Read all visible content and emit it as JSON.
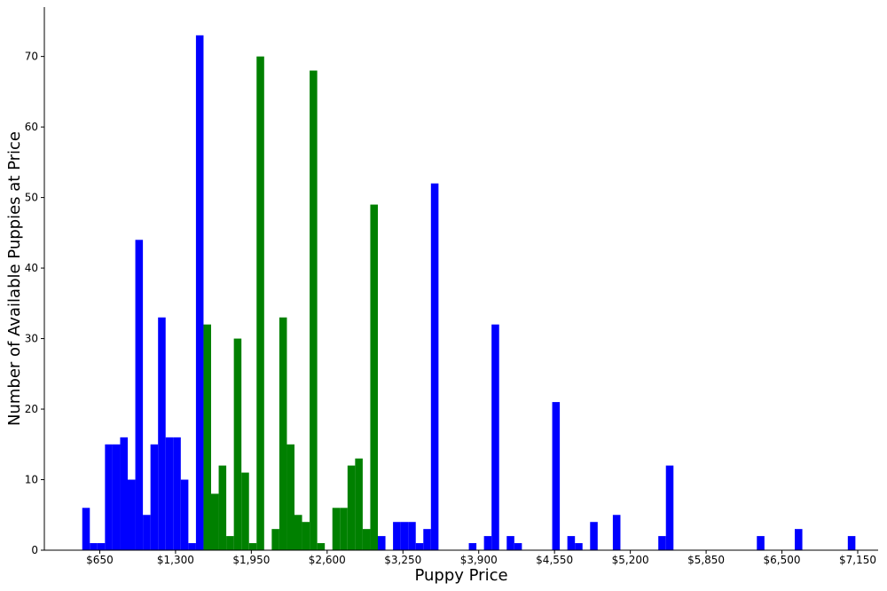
{
  "chart_data": {
    "type": "bar",
    "title": "",
    "xlabel": "Puppy Price",
    "ylabel": "Number of Available Puppies at Price",
    "xlim": [
      175,
      7325
    ],
    "ylim": [
      0,
      77
    ],
    "x_ticks": [
      650,
      1300,
      1950,
      2600,
      3250,
      3900,
      4550,
      5200,
      5850,
      6500,
      7150
    ],
    "x_tick_labels": [
      "$650",
      "$1,300",
      "$1,950",
      "$2,600",
      "$3,250",
      "$3,900",
      "$4,550",
      "$5,200",
      "$5,850",
      "$6,500",
      "$7,150"
    ],
    "y_ticks": [
      0,
      10,
      20,
      30,
      40,
      50,
      60,
      70
    ],
    "y_tick_labels": [
      "0",
      "10",
      "20",
      "30",
      "40",
      "50",
      "60",
      "70"
    ],
    "bin_width": 65,
    "grid": false,
    "colors": {
      "blue": "#0000ff",
      "green": "#008000"
    },
    "bars": [
      {
        "x": 500,
        "value": 6,
        "color": "blue"
      },
      {
        "x": 565,
        "value": 1,
        "color": "blue"
      },
      {
        "x": 630,
        "value": 1,
        "color": "blue"
      },
      {
        "x": 695,
        "value": 15,
        "color": "blue"
      },
      {
        "x": 760,
        "value": 15,
        "color": "blue"
      },
      {
        "x": 825,
        "value": 16,
        "color": "blue"
      },
      {
        "x": 890,
        "value": 10,
        "color": "blue"
      },
      {
        "x": 955,
        "value": 44,
        "color": "blue"
      },
      {
        "x": 1020,
        "value": 5,
        "color": "blue"
      },
      {
        "x": 1085,
        "value": 15,
        "color": "blue"
      },
      {
        "x": 1150,
        "value": 33,
        "color": "blue"
      },
      {
        "x": 1215,
        "value": 16,
        "color": "blue"
      },
      {
        "x": 1280,
        "value": 16,
        "color": "blue"
      },
      {
        "x": 1345,
        "value": 10,
        "color": "blue"
      },
      {
        "x": 1410,
        "value": 1,
        "color": "blue"
      },
      {
        "x": 1475,
        "value": 73,
        "color": "blue"
      },
      {
        "x": 1540,
        "value": 32,
        "color": "green"
      },
      {
        "x": 1605,
        "value": 8,
        "color": "green"
      },
      {
        "x": 1670,
        "value": 12,
        "color": "green"
      },
      {
        "x": 1735,
        "value": 2,
        "color": "green"
      },
      {
        "x": 1800,
        "value": 30,
        "color": "green"
      },
      {
        "x": 1865,
        "value": 11,
        "color": "green"
      },
      {
        "x": 1930,
        "value": 1,
        "color": "green"
      },
      {
        "x": 1995,
        "value": 70,
        "color": "green"
      },
      {
        "x": 2125,
        "value": 3,
        "color": "green"
      },
      {
        "x": 2190,
        "value": 33,
        "color": "green"
      },
      {
        "x": 2255,
        "value": 15,
        "color": "green"
      },
      {
        "x": 2320,
        "value": 5,
        "color": "green"
      },
      {
        "x": 2385,
        "value": 4,
        "color": "green"
      },
      {
        "x": 2450,
        "value": 68,
        "color": "green"
      },
      {
        "x": 2515,
        "value": 1,
        "color": "green"
      },
      {
        "x": 2645,
        "value": 6,
        "color": "green"
      },
      {
        "x": 2710,
        "value": 6,
        "color": "green"
      },
      {
        "x": 2775,
        "value": 12,
        "color": "green"
      },
      {
        "x": 2840,
        "value": 13,
        "color": "green"
      },
      {
        "x": 2905,
        "value": 3,
        "color": "green"
      },
      {
        "x": 2970,
        "value": 49,
        "color": "green"
      },
      {
        "x": 3035,
        "value": 2,
        "color": "blue"
      },
      {
        "x": 3165,
        "value": 4,
        "color": "blue"
      },
      {
        "x": 3230,
        "value": 4,
        "color": "blue"
      },
      {
        "x": 3295,
        "value": 4,
        "color": "blue"
      },
      {
        "x": 3360,
        "value": 1,
        "color": "blue"
      },
      {
        "x": 3425,
        "value": 3,
        "color": "blue"
      },
      {
        "x": 3490,
        "value": 52,
        "color": "blue"
      },
      {
        "x": 3815,
        "value": 1,
        "color": "blue"
      },
      {
        "x": 3945,
        "value": 2,
        "color": "blue"
      },
      {
        "x": 4010,
        "value": 32,
        "color": "blue"
      },
      {
        "x": 4140,
        "value": 2,
        "color": "blue"
      },
      {
        "x": 4205,
        "value": 1,
        "color": "blue"
      },
      {
        "x": 4530,
        "value": 21,
        "color": "blue"
      },
      {
        "x": 4660,
        "value": 2,
        "color": "blue"
      },
      {
        "x": 4725,
        "value": 1,
        "color": "blue"
      },
      {
        "x": 4855,
        "value": 4,
        "color": "blue"
      },
      {
        "x": 5050,
        "value": 5,
        "color": "blue"
      },
      {
        "x": 5440,
        "value": 2,
        "color": "blue"
      },
      {
        "x": 5505,
        "value": 12,
        "color": "blue"
      },
      {
        "x": 6285,
        "value": 2,
        "color": "blue"
      },
      {
        "x": 6610,
        "value": 3,
        "color": "blue"
      },
      {
        "x": 7065,
        "value": 2,
        "color": "blue"
      }
    ]
  }
}
